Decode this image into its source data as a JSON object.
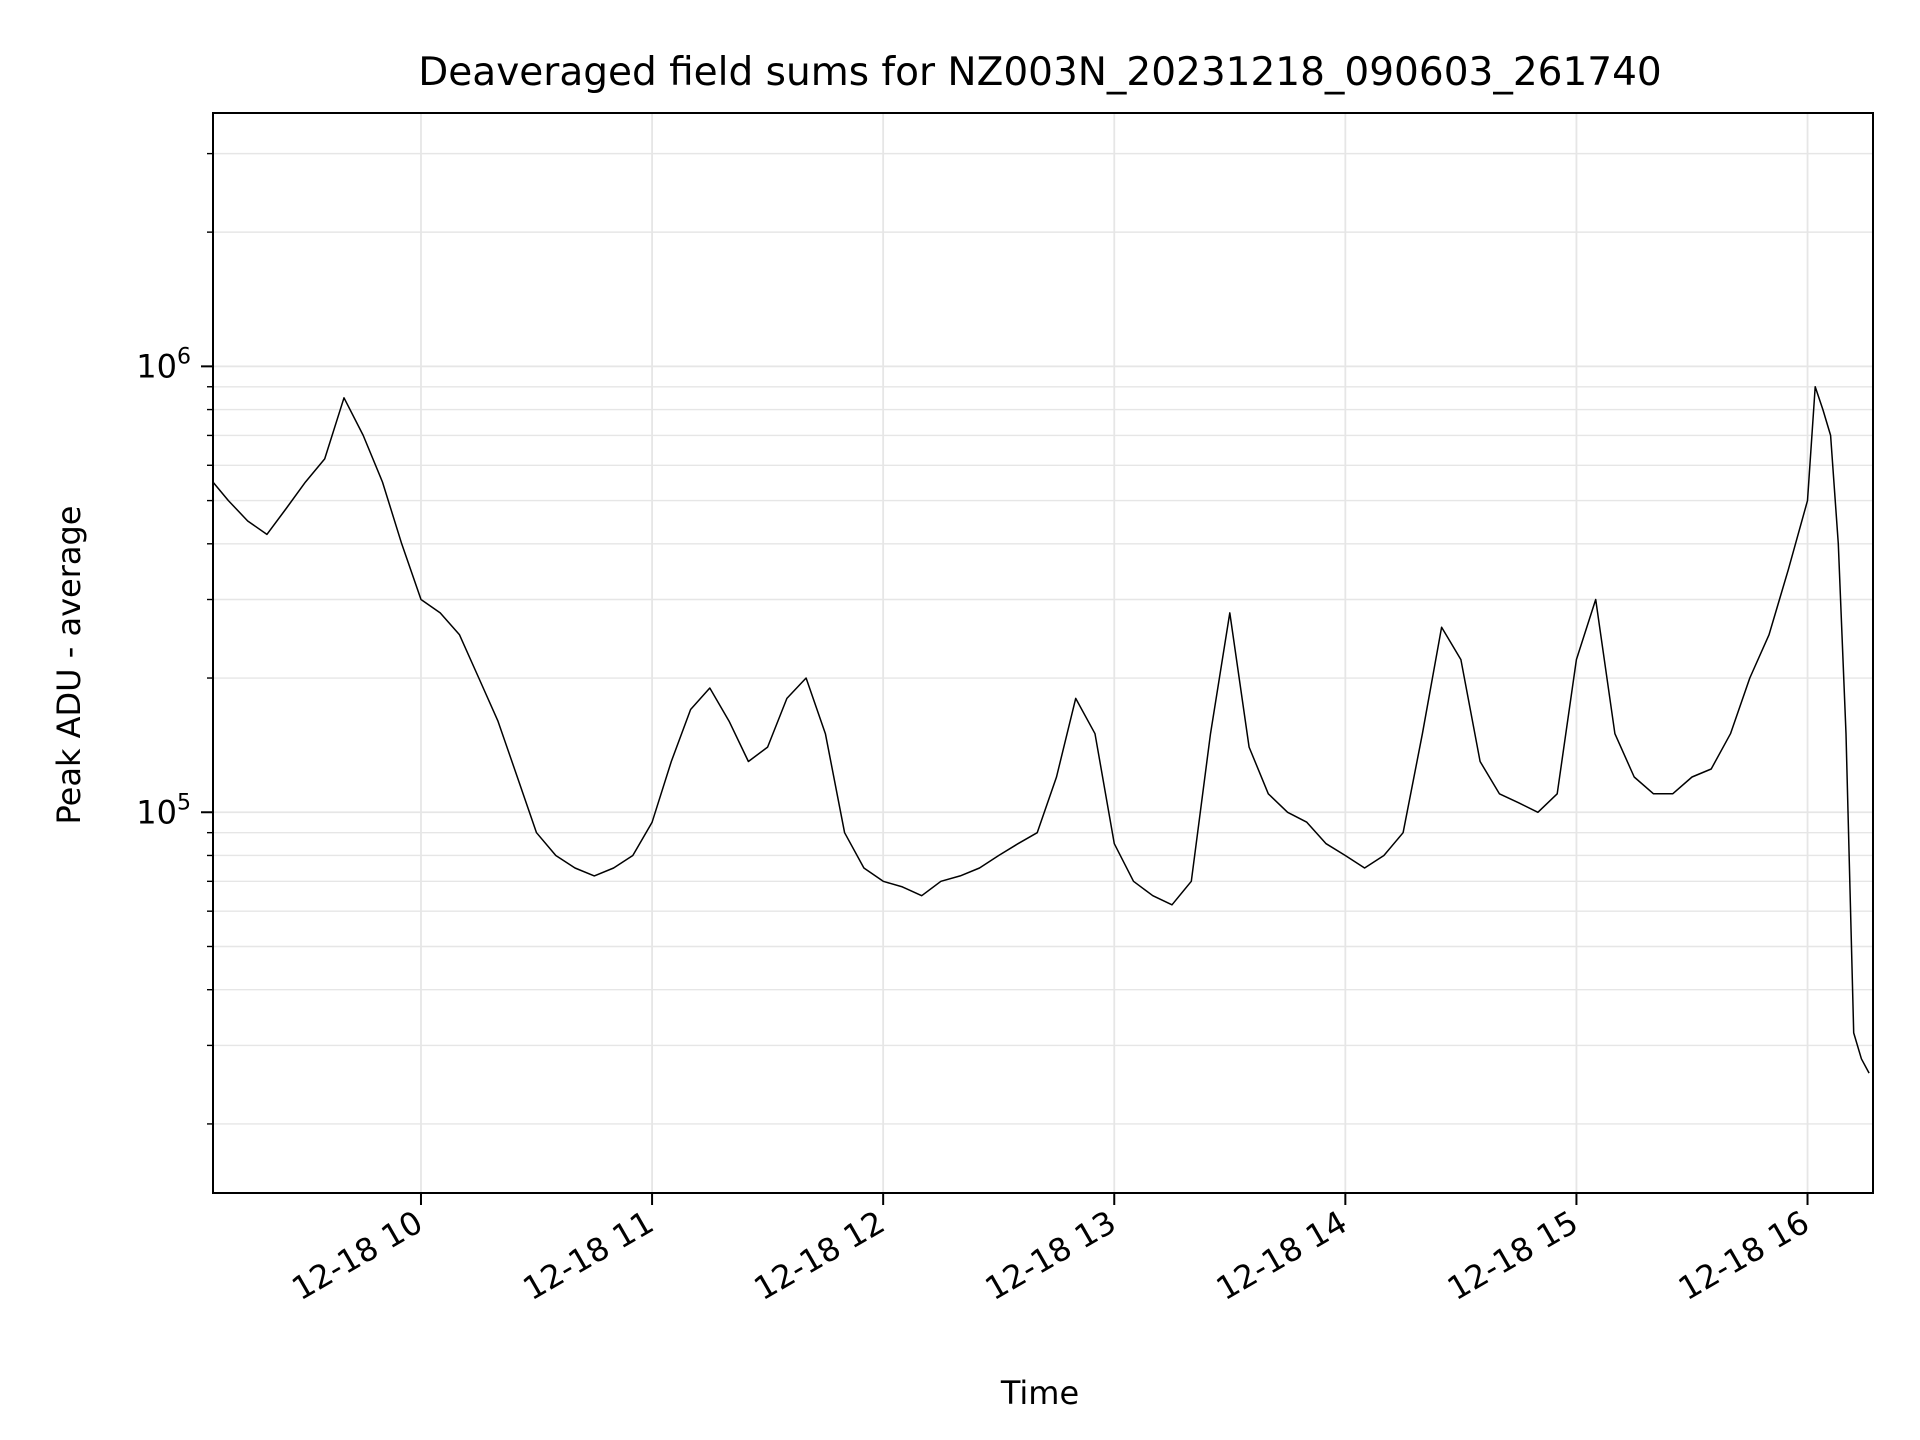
{
  "chart_data": {
    "type": "line",
    "title": "Deaveraged field sums for NZ003N_20231218_090603_261740",
    "xlabel": "Time",
    "ylabel": "Peak ADU - average",
    "y_scale": "log",
    "ylim": [
      14000,
      3700000
    ],
    "xlim": [
      "2023-12-18 09:06",
      "2023-12-18 16:17"
    ],
    "x_ticks": [
      "2023-12-18 10:00",
      "2023-12-18 11:00",
      "2023-12-18 12:00",
      "2023-12-18 13:00",
      "2023-12-18 14:00",
      "2023-12-18 15:00",
      "2023-12-18 16:00"
    ],
    "x_tick_labels": [
      "12-18 10",
      "12-18 11",
      "12-18 12",
      "12-18 13",
      "12-18 14",
      "12-18 15",
      "12-18 16"
    ],
    "y_ticks": [
      100000,
      1000000
    ],
    "y_tick_labels": [
      {
        "base": "10",
        "exp": "5"
      },
      {
        "base": "10",
        "exp": "6"
      }
    ],
    "grid": true,
    "line_color": "#000000",
    "grid_color": "#e6e6e6",
    "series": [
      {
        "x": [
          "09:06",
          "09:10",
          "09:15",
          "09:20",
          "09:25",
          "09:30",
          "09:35",
          "09:40",
          "09:45",
          "09:50",
          "09:55",
          "10:00",
          "10:05",
          "10:10",
          "10:15",
          "10:20",
          "10:25",
          "10:30",
          "10:35",
          "10:40",
          "10:45",
          "10:50",
          "10:55",
          "11:00",
          "11:05",
          "11:10",
          "11:15",
          "11:20",
          "11:25",
          "11:30",
          "11:35",
          "11:40",
          "11:45",
          "11:50",
          "11:55",
          "12:00",
          "12:05",
          "12:10",
          "12:15",
          "12:20",
          "12:25",
          "12:30",
          "12:35",
          "12:40",
          "12:45",
          "12:50",
          "12:55",
          "13:00",
          "13:05",
          "13:10",
          "13:15",
          "13:20",
          "13:25",
          "13:30",
          "13:35",
          "13:40",
          "13:45",
          "13:50",
          "13:55",
          "14:00",
          "14:05",
          "14:10",
          "14:15",
          "14:20",
          "14:25",
          "14:30",
          "14:35",
          "14:40",
          "14:45",
          "14:50",
          "14:55",
          "15:00",
          "15:05",
          "15:10",
          "15:15",
          "15:20",
          "15:25",
          "15:30",
          "15:35",
          "15:40",
          "15:45",
          "15:50",
          "15:55",
          "16:00",
          "16:02",
          "16:04",
          "16:06",
          "16:08",
          "16:10",
          "16:12",
          "16:14",
          "16:16"
        ],
        "values": [
          550000,
          500000,
          450000,
          420000,
          480000,
          550000,
          620000,
          850000,
          700000,
          550000,
          400000,
          300000,
          280000,
          250000,
          200000,
          160000,
          120000,
          90000,
          80000,
          75000,
          72000,
          75000,
          80000,
          95000,
          130000,
          170000,
          190000,
          160000,
          130000,
          140000,
          180000,
          200000,
          150000,
          90000,
          75000,
          70000,
          68000,
          65000,
          70000,
          72000,
          75000,
          80000,
          85000,
          90000,
          120000,
          180000,
          150000,
          85000,
          70000,
          65000,
          62000,
          70000,
          150000,
          280000,
          140000,
          110000,
          100000,
          95000,
          85000,
          80000,
          75000,
          80000,
          90000,
          150000,
          260000,
          220000,
          130000,
          110000,
          105000,
          100000,
          110000,
          220000,
          300000,
          150000,
          120000,
          110000,
          110000,
          120000,
          125000,
          150000,
          200000,
          250000,
          350000,
          500000,
          900000,
          800000,
          700000,
          400000,
          150000,
          32000,
          28000,
          26000
        ]
      }
    ]
  }
}
